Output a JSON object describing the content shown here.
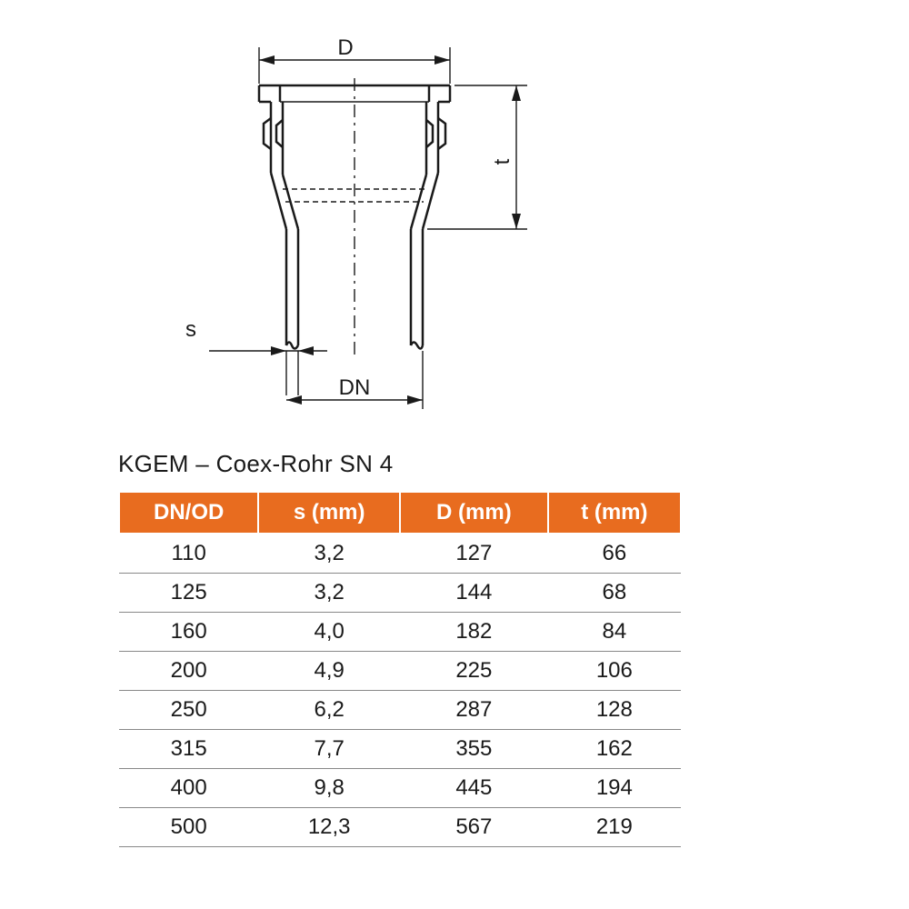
{
  "diagram": {
    "labels": {
      "D": "D",
      "t": "t",
      "s": "s",
      "DN": "DN"
    },
    "colors": {
      "stroke": "#1a1a1a",
      "background": "#ffffff"
    },
    "line_widths": {
      "thick": 2.5,
      "thin": 1.4
    }
  },
  "table": {
    "title": "KGEM – Coex-Rohr SN 4",
    "header_bg": "#e86c1f",
    "header_fg": "#ffffff",
    "row_border": "#888888",
    "font_size_header": 24,
    "font_size_cell": 24,
    "columns": [
      "DN/OD",
      "s (mm)",
      "D (mm)",
      "t (mm)"
    ],
    "rows": [
      [
        "110",
        "3,2",
        "127",
        "66"
      ],
      [
        "125",
        "3,2",
        "144",
        "68"
      ],
      [
        "160",
        "4,0",
        "182",
        "84"
      ],
      [
        "200",
        "4,9",
        "225",
        "106"
      ],
      [
        "250",
        "6,2",
        "287",
        "128"
      ],
      [
        "315",
        "7,7",
        "355",
        "162"
      ],
      [
        "400",
        "9,8",
        "445",
        "194"
      ],
      [
        "500",
        "12,3",
        "567",
        "219"
      ]
    ]
  }
}
